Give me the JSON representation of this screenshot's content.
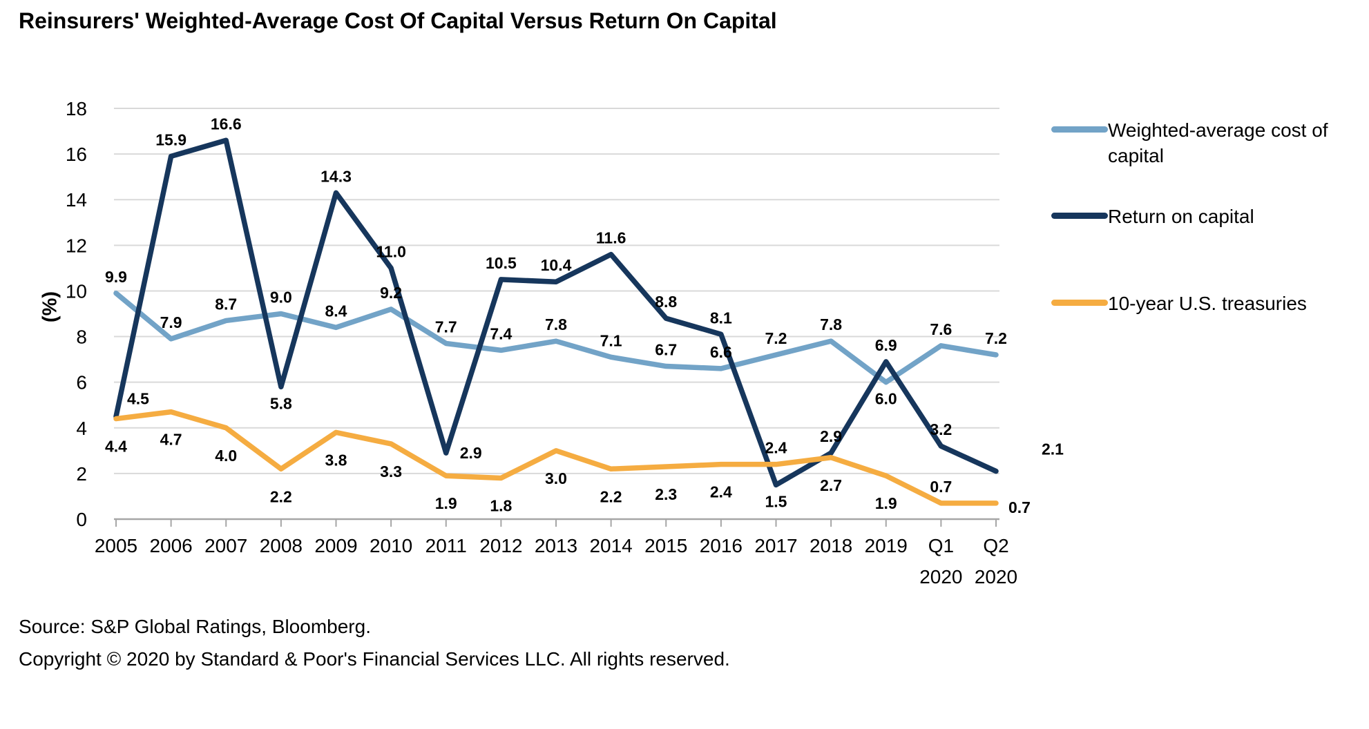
{
  "title": "Reinsurers' Weighted-Average Cost Of Capital Versus Return On Capital",
  "footer": {
    "source": "Source: S&P Global Ratings, Bloomberg.",
    "copyright": "Copyright © 2020 by Standard & Poor's Financial Services LLC. All rights reserved."
  },
  "chart_data": {
    "type": "line",
    "title": "Reinsurers' Weighted-Average Cost Of Capital Versus Return On Capital",
    "xlabel": "",
    "ylabel": "(%)",
    "ylim": [
      0,
      18
    ],
    "ytick_step": 2,
    "grid": true,
    "legend_position": "right",
    "categories": [
      "2005",
      "2006",
      "2007",
      "2008",
      "2009",
      "2010",
      "2011",
      "2012",
      "2013",
      "2014",
      "2015",
      "2016",
      "2017",
      "2018",
      "2019",
      "Q1 2020",
      "Q2 2020"
    ],
    "series": [
      {
        "name": "Weighted-average cost of capital",
        "color": "#72A3C7",
        "values": [
          9.9,
          7.9,
          8.7,
          9.0,
          8.4,
          9.2,
          7.7,
          7.4,
          7.8,
          7.1,
          6.7,
          6.6,
          7.2,
          7.8,
          6.0,
          7.6,
          7.2
        ],
        "label_pos": [
          "above",
          "above",
          "above",
          "above",
          "above",
          "above",
          "above",
          "above",
          "above",
          "above",
          "above",
          "above",
          "above",
          "above",
          "below",
          "above",
          "above"
        ]
      },
      {
        "name": "Return on capital",
        "color": "#16365C",
        "values": [
          4.5,
          15.9,
          16.6,
          5.8,
          14.3,
          11.0,
          2.9,
          10.5,
          10.4,
          11.6,
          8.8,
          8.1,
          1.5,
          2.9,
          6.9,
          3.2,
          2.1
        ],
        "label_pos": [
          "above-right",
          "above",
          "above",
          "below",
          "above",
          "above",
          "right",
          "above",
          "above",
          "above",
          "above",
          "above",
          "below",
          "above",
          "above",
          "above",
          "far-right"
        ]
      },
      {
        "name": "10-year U.S. treasuries",
        "color": "#F5AC41",
        "values": [
          4.4,
          4.7,
          4.0,
          2.2,
          3.8,
          3.3,
          1.9,
          1.8,
          3.0,
          2.2,
          2.3,
          2.4,
          2.4,
          2.7,
          1.9,
          0.7,
          0.7
        ],
        "label_pos": [
          "below-far",
          "below-far",
          "below-far",
          "below-far",
          "below-far",
          "below-far",
          "below-far",
          "below-far",
          "below-far",
          "below-far",
          "below-far",
          "below-far",
          "above",
          "below-far",
          "below-far",
          "above",
          "right-low"
        ]
      }
    ],
    "style": {
      "gridline_color": "#D9D9D9",
      "axis_color": "#A6A6A6",
      "label_color": "#000000"
    }
  }
}
